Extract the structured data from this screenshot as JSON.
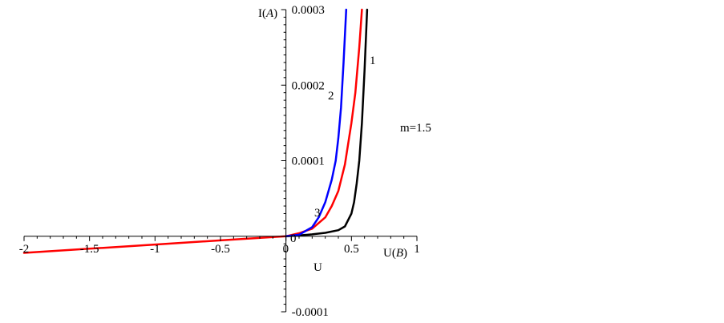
{
  "chart_data": {
    "type": "line",
    "xlabel_axis": "U(B)",
    "xlabel_below": "U",
    "ylabel": "I(A)",
    "xlim": [
      -2,
      1
    ],
    "ylim": [
      -0.0001,
      0.0003
    ],
    "x_ticks": [
      -2,
      -1.5,
      -1,
      -0.5,
      0,
      0.5,
      1
    ],
    "x_tick_labels": [
      "-2",
      "-1.5",
      "-1",
      "-0.5",
      "0",
      "0.5",
      "1"
    ],
    "y_ticks": [
      -0.0001,
      0.0001,
      0.0002,
      0.0003
    ],
    "y_tick_labels": [
      "-0.0001",
      "0.0001",
      "0.0002",
      "0.0003"
    ],
    "origin_label": "0",
    "annotation": "m=1.5",
    "grid": false,
    "series": [
      {
        "name": "1",
        "color": "#000000",
        "x": [
          0,
          0.1,
          0.2,
          0.3,
          0.4,
          0.45,
          0.5,
          0.52,
          0.54,
          0.56,
          0.58,
          0.6,
          0.62
        ],
        "y": [
          0,
          1e-06,
          2.5e-06,
          4.5e-06,
          8e-06,
          1.3e-05,
          3e-05,
          4.5e-05,
          7e-05,
          0.0001,
          0.00015,
          0.00022,
          0.0003
        ]
      },
      {
        "name": "2",
        "color": "#ff0000",
        "x": [
          -2,
          -1.5,
          -1,
          -0.5,
          0,
          0.1,
          0.2,
          0.3,
          0.35,
          0.4,
          0.45,
          0.5,
          0.53,
          0.56,
          0.58
        ],
        "y": [
          -2.2e-05,
          -1.65e-05,
          -1.1e-05,
          -5.5e-06,
          0,
          4e-06,
          1e-05,
          2.5e-05,
          4e-05,
          6e-05,
          9.5e-05,
          0.00015,
          0.00019,
          0.00025,
          0.0003
        ]
      },
      {
        "name": "3",
        "color": "#0000ff",
        "x": [
          0,
          0.1,
          0.2,
          0.25,
          0.3,
          0.35,
          0.38,
          0.4,
          0.42,
          0.44,
          0.46
        ],
        "y": [
          0,
          2e-06,
          1.2e-05,
          2.5e-05,
          4.5e-05,
          7.5e-05,
          0.0001,
          0.00013,
          0.00017,
          0.00023,
          0.0003
        ]
      }
    ]
  }
}
